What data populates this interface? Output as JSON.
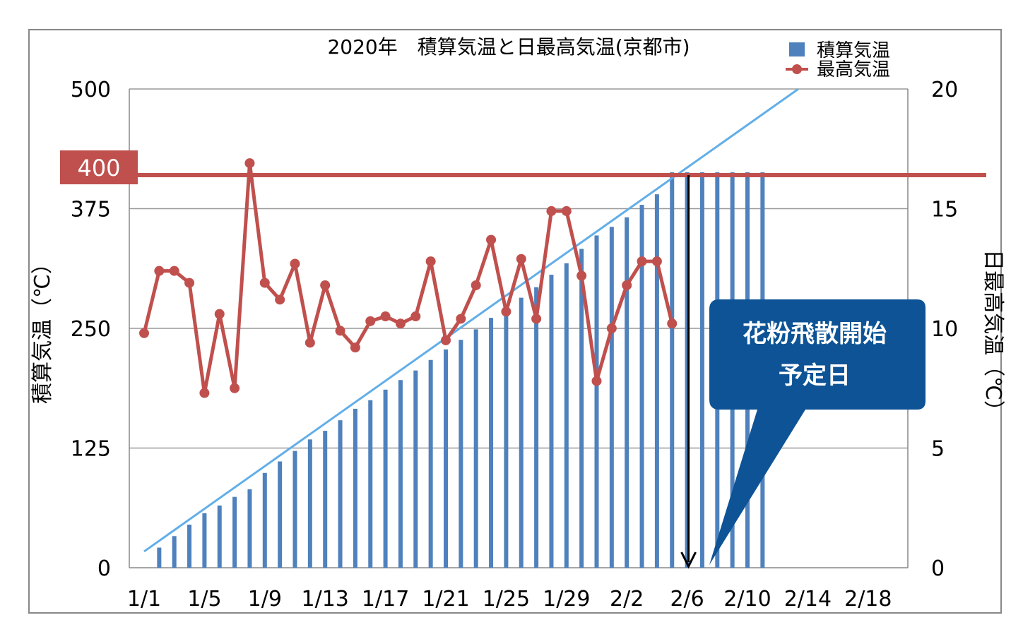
{
  "chart_data": {
    "type": "bar+line",
    "title": "2020年　積算気温と日最高気温(京都市)",
    "x_tick_labels": [
      "1/1",
      "1/5",
      "1/9",
      "1/13",
      "1/17",
      "1/21",
      "1/25",
      "1/29",
      "2/2",
      "2/6",
      "2/10",
      "2/14",
      "2/18"
    ],
    "left_axis": {
      "label": "積算気温（℃）",
      "min": 0,
      "max": 500,
      "ticks": [
        0,
        125,
        250,
        375,
        500
      ]
    },
    "right_axis": {
      "label": "日最高気温（℃）",
      "min": 0,
      "max": 20,
      "ticks": [
        0,
        5,
        10,
        15,
        20
      ]
    },
    "legend": {
      "position": "top-right",
      "items": [
        {
          "name": "積算気温",
          "color": "#4f81bd",
          "kind": "bar"
        },
        {
          "name": "最高気温",
          "color": "#c0504d",
          "kind": "line-marker"
        }
      ]
    },
    "series": [
      {
        "name": "積算気温",
        "type": "bar",
        "axis": "left",
        "color": "#4f81bd",
        "start_day_index": 1,
        "values": [
          21,
          33,
          45,
          57,
          65,
          74,
          82,
          99,
          111,
          122,
          134,
          143,
          154,
          166,
          175,
          186,
          196,
          206,
          217,
          228,
          238,
          249,
          261,
          272,
          282,
          293,
          306,
          318,
          333,
          347,
          356,
          366,
          379,
          390,
          413,
          413,
          413,
          413,
          413,
          413,
          413
        ]
      },
      {
        "name": "最高気温",
        "type": "line",
        "axis": "right",
        "color": "#c0504d",
        "start_day_index": 0,
        "values": [
          9.8,
          12.4,
          12.4,
          11.9,
          7.3,
          10.6,
          7.5,
          16.9,
          11.9,
          11.2,
          12.7,
          9.4,
          11.8,
          9.9,
          9.2,
          10.3,
          10.5,
          10.2,
          10.5,
          12.8,
          9.5,
          10.4,
          11.8,
          13.7,
          10.7,
          12.9,
          10.4,
          14.9,
          14.9,
          12.2,
          7.8,
          10.0,
          11.8,
          12.8,
          12.8,
          10.2
        ]
      },
      {
        "name": "",
        "type": "trendline",
        "axis": "left",
        "color": "#62aee8",
        "points": [
          [
            0,
            17
          ],
          [
            44,
            507
          ]
        ]
      }
    ],
    "reference_line": {
      "value": 410,
      "axis": "left",
      "label": "400",
      "color": "#c0504d"
    },
    "marker_day_index": 36,
    "callout": {
      "line1": "花粉飛散開始",
      "line2": "予定日",
      "color": "#0d5395"
    }
  }
}
